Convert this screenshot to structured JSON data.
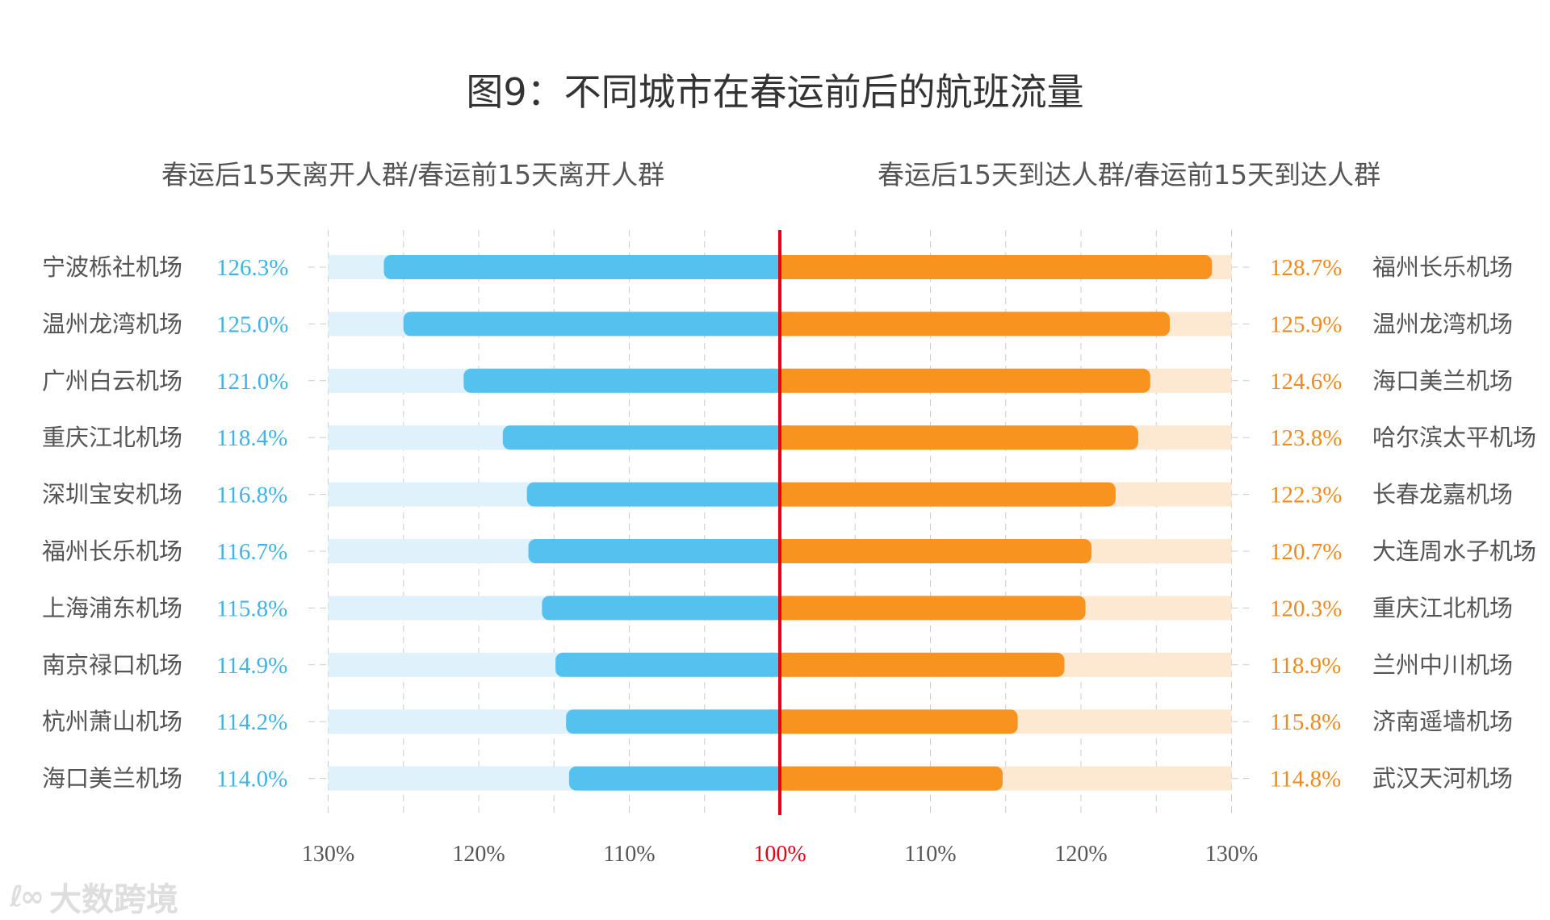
{
  "colors": {
    "left_bar": "#55c1ef",
    "left_track": "#dff1fb",
    "left_label": "#3fb3e6",
    "right_bar": "#f8931f",
    "right_track": "#fde8d2",
    "right_label": "#f08a1c",
    "center_line": "#e60012",
    "grid": "#cccccc",
    "airport_text": "#555555"
  },
  "watermark": {
    "logo": "ℓ∞",
    "text": "大数跨境"
  },
  "chart_data": {
    "type": "bar",
    "title": "图9：不同城市在春运前后的航班流量",
    "left": {
      "subtitle": "春运后15天离开人群/春运前15天离开人群",
      "categories": [
        "宁波栎社机场",
        "温州龙湾机场",
        "广州白云机场",
        "重庆江北机场",
        "深圳宝安机场",
        "福州长乐机场",
        "上海浦东机场",
        "南京禄口机场",
        "杭州萧山机场",
        "海口美兰机场"
      ],
      "values": [
        126.3,
        125.0,
        121.0,
        118.4,
        116.8,
        116.7,
        115.8,
        114.9,
        114.2,
        114.0
      ],
      "labels": [
        "126.3%",
        "125.0%",
        "121.0%",
        "118.4%",
        "116.8%",
        "116.7%",
        "115.8%",
        "114.9%",
        "114.2%",
        "114.0%"
      ]
    },
    "right": {
      "subtitle": "春运后15天到达人群/春运前15天到达人群",
      "categories": [
        "福州长乐机场",
        "温州龙湾机场",
        "海口美兰机场",
        "哈尔滨太平机场",
        "长春龙嘉机场",
        "大连周水子机场",
        "重庆江北机场",
        "兰州中川机场",
        "济南遥墙机场",
        "武汉天河机场"
      ],
      "values": [
        128.7,
        125.9,
        124.6,
        123.8,
        122.3,
        120.7,
        120.3,
        118.9,
        115.8,
        114.8
      ],
      "labels": [
        "128.7%",
        "125.9%",
        "124.6%",
        "123.8%",
        "122.3%",
        "120.7%",
        "120.3%",
        "118.9%",
        "115.8%",
        "114.8%"
      ]
    },
    "xlim": [
      100,
      130
    ],
    "x_ticks": [
      "130%",
      "120%",
      "110%",
      "100%",
      "110%",
      "120%",
      "130%"
    ],
    "grid": true
  }
}
